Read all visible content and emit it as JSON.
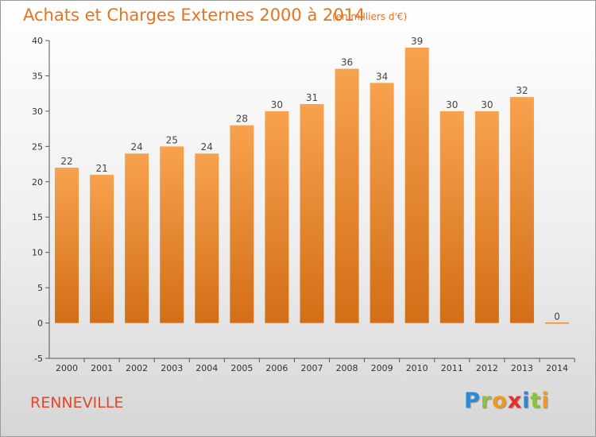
{
  "header": {
    "title": "Achats et Charges Externes 2000 à 2014",
    "unit": "(en milliers d'€)"
  },
  "footer": {
    "town": "RENNEVILLE",
    "logo_letters": [
      "P",
      "r",
      "o",
      "x",
      "i",
      "t",
      "i"
    ]
  },
  "colors": {
    "title": "#e8731c",
    "town": "#e2492a",
    "bar_top": "#f7a24f",
    "bar_bottom": "#d36e16",
    "logo": [
      "#2a8ad8",
      "#8ac43c",
      "#f09a1d",
      "#e3302f",
      "#2a8ad8",
      "#8ac43c",
      "#f09a1d"
    ]
  },
  "chart_data": {
    "type": "bar",
    "categories": [
      "2000",
      "2001",
      "2002",
      "2003",
      "2004",
      "2005",
      "2006",
      "2007",
      "2008",
      "2009",
      "2010",
      "2011",
      "2012",
      "2013",
      "2014"
    ],
    "values": [
      22,
      21,
      24,
      25,
      24,
      28,
      30,
      31,
      36,
      34,
      39,
      30,
      30,
      32,
      0
    ],
    "data_labels": [
      "22",
      "21",
      "24",
      "25",
      "24",
      "28",
      "30",
      "31",
      "36",
      "34",
      "39",
      "30",
      "30",
      "32",
      "0"
    ],
    "title": "Achats et Charges Externes 2000 à 2014",
    "xlabel": "",
    "ylabel": "",
    "ylim": [
      -5,
      40
    ],
    "yticks": [
      -5,
      0,
      5,
      10,
      15,
      20,
      25,
      30,
      35,
      40
    ],
    "grid": false,
    "legend": "none"
  }
}
